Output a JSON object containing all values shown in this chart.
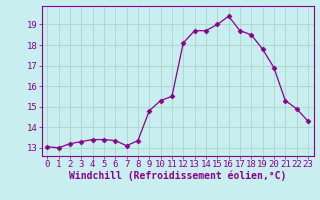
{
  "x": [
    0,
    1,
    2,
    3,
    4,
    5,
    6,
    7,
    8,
    9,
    10,
    11,
    12,
    13,
    14,
    15,
    16,
    17,
    18,
    19,
    20,
    21,
    22,
    23
  ],
  "y": [
    13.05,
    13.0,
    13.2,
    13.3,
    13.4,
    13.4,
    13.35,
    13.1,
    13.35,
    14.8,
    15.3,
    15.5,
    18.1,
    18.7,
    18.7,
    19.0,
    19.4,
    18.7,
    18.5,
    17.8,
    16.9,
    15.3,
    14.9,
    14.3
  ],
  "line_color": "#8b008b",
  "marker": "D",
  "marker_size": 2.5,
  "background_color": "#c8eef0",
  "grid_color": "#b0d8d0",
  "xlabel": "Windchill (Refroidissement éolien,°C)",
  "xlim": [
    -0.5,
    23.5
  ],
  "ylim": [
    12.6,
    19.9
  ],
  "yticks": [
    13,
    14,
    15,
    16,
    17,
    18,
    19
  ],
  "xticks": [
    0,
    1,
    2,
    3,
    4,
    5,
    6,
    7,
    8,
    9,
    10,
    11,
    12,
    13,
    14,
    15,
    16,
    17,
    18,
    19,
    20,
    21,
    22,
    23
  ],
  "axis_fontsize": 7,
  "tick_fontsize": 6.5
}
